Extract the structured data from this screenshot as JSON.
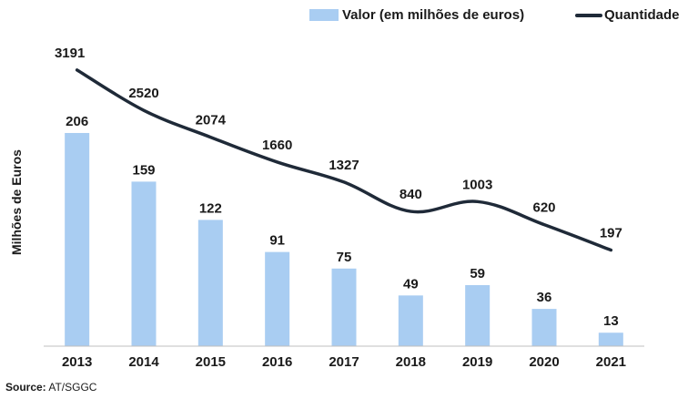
{
  "chart_data": {
    "type": "bar",
    "categories": [
      "2013",
      "2014",
      "2015",
      "2016",
      "2017",
      "2018",
      "2019",
      "2020",
      "2021"
    ],
    "series": [
      {
        "name": "Valor (em milhões de euros)",
        "type": "bar",
        "values": [
          206,
          159,
          122,
          91,
          75,
          49,
          59,
          36,
          13
        ],
        "color": "#a9cdf2"
      },
      {
        "name": "Quantidade",
        "type": "line",
        "values": [
          3191,
          2520,
          2074,
          1660,
          1327,
          840,
          1003,
          620,
          197
        ],
        "color": "#1f2a38"
      }
    ],
    "ylabel": "Milhões de Euros",
    "bar_ylim": [
      0,
      250
    ],
    "line_ylim": [
      -1400,
      3900
    ],
    "legend_position": "top-right",
    "grid": false
  },
  "source": {
    "label": "Source:",
    "text": "AT/SGGC"
  }
}
